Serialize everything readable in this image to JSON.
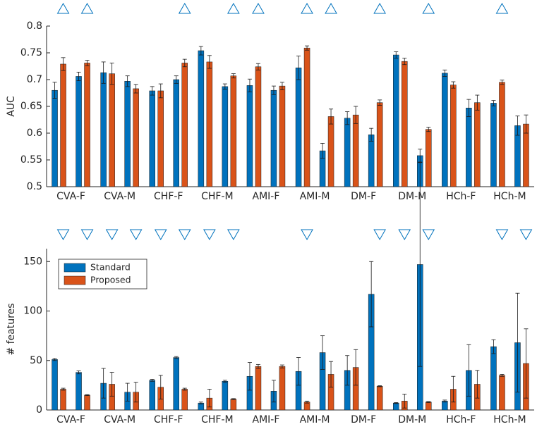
{
  "chart_data": [
    {
      "type": "bar",
      "y_label": "AUC",
      "categories": [
        "CVA-F",
        "CVA-M",
        "CHF-F",
        "CHF-M",
        "AMI-F",
        "AMI-M",
        "DM-F",
        "DM-M",
        "HCh-F",
        "HCh-M"
      ],
      "series": [
        {
          "name": "Standard",
          "color": "#0072bd",
          "values": [
            [
              0.68,
              0.706
            ],
            [
              0.713,
              0.697
            ],
            [
              0.679,
              0.7
            ],
            [
              0.754,
              0.687
            ],
            [
              0.689,
              0.68
            ],
            [
              0.722,
              0.567
            ],
            [
              0.628,
              0.597
            ],
            [
              0.746,
              0.558
            ],
            [
              0.712,
              0.647
            ],
            [
              0.656,
              0.614
            ]
          ],
          "errors": [
            [
              0.015,
              0.008
            ],
            [
              0.02,
              0.01
            ],
            [
              0.008,
              0.007
            ],
            [
              0.008,
              0.005
            ],
            [
              0.012,
              0.008
            ],
            [
              0.022,
              0.014
            ],
            [
              0.012,
              0.012
            ],
            [
              0.006,
              0.012
            ],
            [
              0.006,
              0.016
            ],
            [
              0.005,
              0.018
            ]
          ]
        },
        {
          "name": "Proposed",
          "color": "#d95319",
          "values": [
            [
              0.729,
              0.731
            ],
            [
              0.711,
              0.683
            ],
            [
              0.679,
              0.731
            ],
            [
              0.733,
              0.707
            ],
            [
              0.724,
              0.688
            ],
            [
              0.759,
              0.631
            ],
            [
              0.634,
              0.657
            ],
            [
              0.734,
              0.607
            ],
            [
              0.69,
              0.657
            ],
            [
              0.695,
              0.617
            ]
          ],
          "errors": [
            [
              0.012,
              0.005
            ],
            [
              0.02,
              0.008
            ],
            [
              0.013,
              0.007
            ],
            [
              0.012,
              0.004
            ],
            [
              0.006,
              0.007
            ],
            [
              0.004,
              0.014
            ],
            [
              0.016,
              0.005
            ],
            [
              0.006,
              0.004
            ],
            [
              0.006,
              0.014
            ],
            [
              0.004,
              0.017
            ]
          ]
        }
      ],
      "significant": [
        [
          true,
          true
        ],
        [
          false,
          false
        ],
        [
          false,
          true
        ],
        [
          false,
          true
        ],
        [
          true,
          false
        ],
        [
          true,
          true
        ],
        [
          false,
          true
        ],
        [
          false,
          true
        ],
        [
          false,
          false
        ],
        [
          true,
          false
        ]
      ],
      "marker_color": "#0072bd",
      "marker": "up",
      "ylim": [
        0.5,
        0.8
      ],
      "yticks": [
        0.5,
        0.55,
        0.6,
        0.65,
        0.7,
        0.75,
        0.8
      ]
    },
    {
      "type": "bar",
      "y_label": "# features",
      "categories": [
        "CVA-F",
        "CVA-M",
        "CHF-F",
        "CHF-M",
        "AMI-F",
        "AMI-M",
        "DM-F",
        "DM-M",
        "HCh-F",
        "HCh-M"
      ],
      "series": [
        {
          "name": "Standard",
          "color": "#0072bd",
          "values": [
            [
              51,
              38
            ],
            [
              27,
              18
            ],
            [
              30,
              53
            ],
            [
              7,
              29
            ],
            [
              34,
              19
            ],
            [
              39,
              58
            ],
            [
              40,
              117
            ],
            [
              7,
              147
            ],
            [
              9,
              40
            ],
            [
              64,
              68
            ]
          ],
          "errors": [
            [
              1,
              1.5
            ],
            [
              15,
              9
            ],
            [
              1,
              1
            ],
            [
              1,
              1
            ],
            [
              14,
              11
            ],
            [
              14,
              17
            ],
            [
              15,
              33
            ],
            [
              0.5,
              103
            ],
            [
              1,
              26
            ],
            [
              7,
              50
            ]
          ]
        },
        {
          "name": "Proposed",
          "color": "#d95319",
          "values": [
            [
              21,
              15
            ],
            [
              26,
              18
            ],
            [
              23,
              21
            ],
            [
              12,
              11
            ],
            [
              44,
              44
            ],
            [
              8,
              36
            ],
            [
              43,
              24
            ],
            [
              9,
              8
            ],
            [
              21,
              26
            ],
            [
              35,
              47
            ]
          ],
          "errors": [
            [
              1,
              0.5
            ],
            [
              12,
              10
            ],
            [
              12,
              1
            ],
            [
              9,
              0.5
            ],
            [
              2,
              1.5
            ],
            [
              1,
              13
            ],
            [
              18,
              0.5
            ],
            [
              7,
              0.5
            ],
            [
              13,
              14
            ],
            [
              1,
              35
            ]
          ]
        }
      ],
      "significant": [
        [
          true,
          true
        ],
        [
          true,
          true
        ],
        [
          true,
          true
        ],
        [
          true,
          true
        ],
        [
          false,
          false
        ],
        [
          true,
          false
        ],
        [
          false,
          true
        ],
        [
          true,
          true
        ],
        [
          false,
          false
        ],
        [
          true,
          true
        ]
      ],
      "marker_color": "#0072bd",
      "marker": "down",
      "legend": "upper left",
      "ylim": [
        0,
        163
      ],
      "yticks": [
        0,
        50,
        100,
        150
      ]
    }
  ]
}
